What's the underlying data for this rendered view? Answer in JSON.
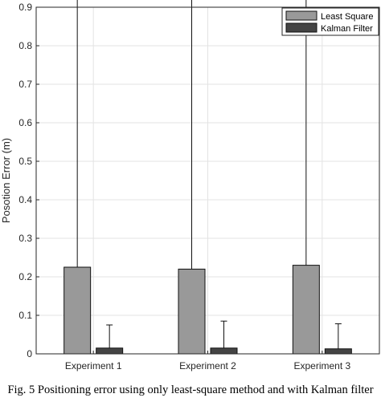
{
  "chart_data": {
    "type": "bar",
    "categories": [
      "Experiment 1",
      "Experiment 2",
      "Experiment 3"
    ],
    "series": [
      {
        "name": "Least Square",
        "values": [
          0.225,
          0.22,
          0.23
        ],
        "error_upper": [
          0.8,
          0.79,
          0.81
        ],
        "error_lower": [
          0,
          0,
          0
        ],
        "color": "#999999"
      },
      {
        "name": "Kalman Filter",
        "values": [
          0.015,
          0.015,
          0.013
        ],
        "error_upper": [
          0.06,
          0.07,
          0.065
        ],
        "error_lower": [
          0,
          0,
          0
        ],
        "color": "#444444"
      }
    ],
    "xlabel": "",
    "ylabel": "Posotion Error (m)",
    "ylim": [
      0,
      0.9
    ],
    "yticks": [
      0,
      0.1,
      0.2,
      0.3,
      0.4,
      0.5,
      0.6,
      0.7,
      0.8,
      0.9
    ],
    "grid": true,
    "legend_position": "top-right"
  },
  "caption": "Fig. 5 Positioning error using only least-square method and with Kalman filter"
}
